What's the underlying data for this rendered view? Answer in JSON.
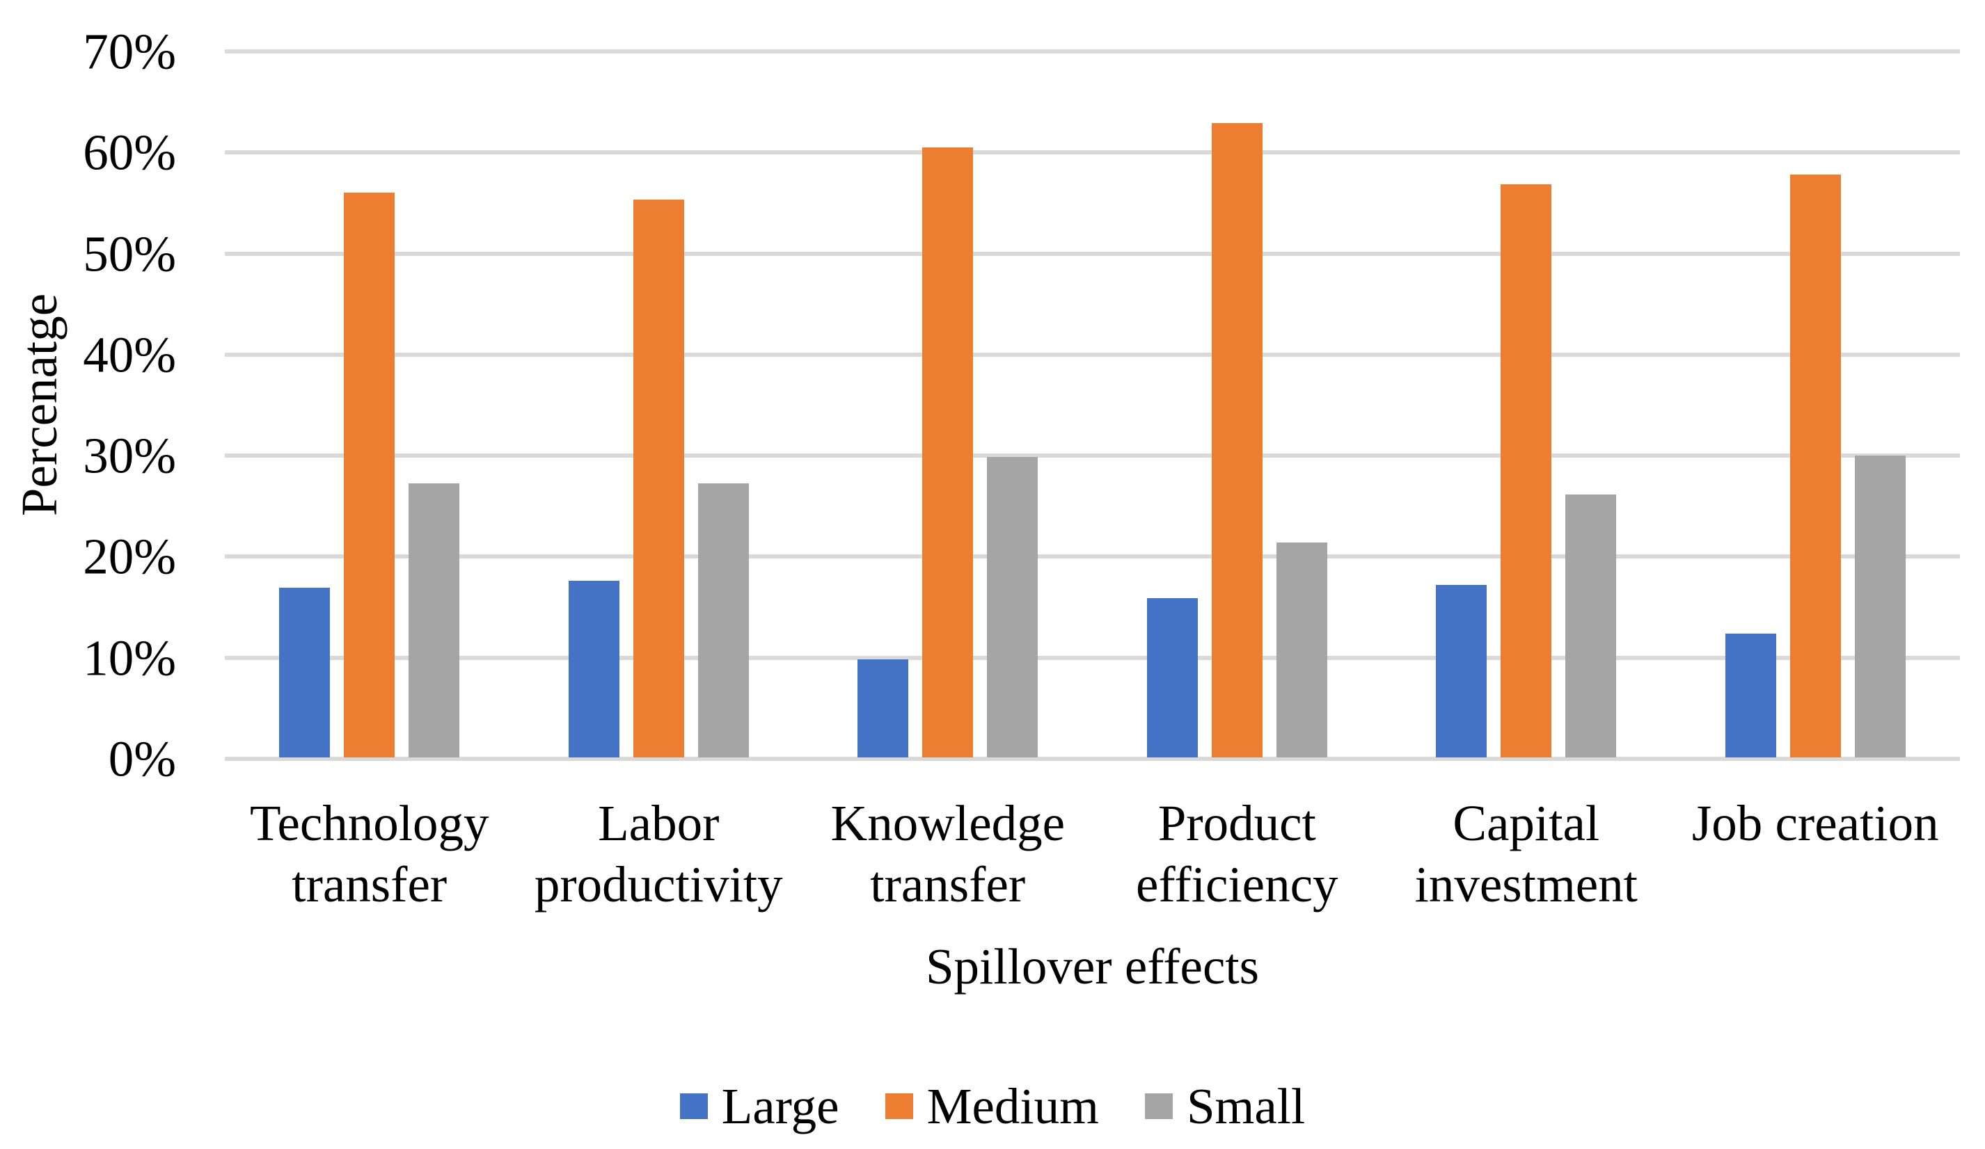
{
  "chart_data": {
    "type": "bar",
    "title": "",
    "categories": [
      "Technology\ntransfer",
      "Labor\nproductivity",
      "Knowledge\ntransfer",
      "Product\nefficiency",
      "Capital\ninvestment",
      "Job creation"
    ],
    "series": [
      {
        "name": "Large",
        "color": "#4472C4",
        "values": [
          16.8,
          17.5,
          9.7,
          15.8,
          17.1,
          12.3
        ]
      },
      {
        "name": "Medium",
        "color": "#ED7D31",
        "values": [
          56.0,
          55.3,
          60.5,
          62.9,
          56.8,
          57.8
        ]
      },
      {
        "name": "Small",
        "color": "#A5A5A5",
        "values": [
          27.2,
          27.2,
          29.8,
          21.3,
          26.1,
          29.9
        ]
      }
    ],
    "xlabel": "Spillover effects",
    "ylabel": "Percenatge",
    "ylim": [
      0,
      70
    ],
    "ytick_step": 10,
    "yticks": [
      "70%",
      "60%",
      "50%",
      "40%",
      "30%",
      "20%",
      "10%",
      "0%"
    ],
    "grid": true,
    "gridline_color": "#D9D9D9",
    "legend_position": "bottom",
    "background": "#FFFFFF",
    "text_color": "#000000"
  }
}
